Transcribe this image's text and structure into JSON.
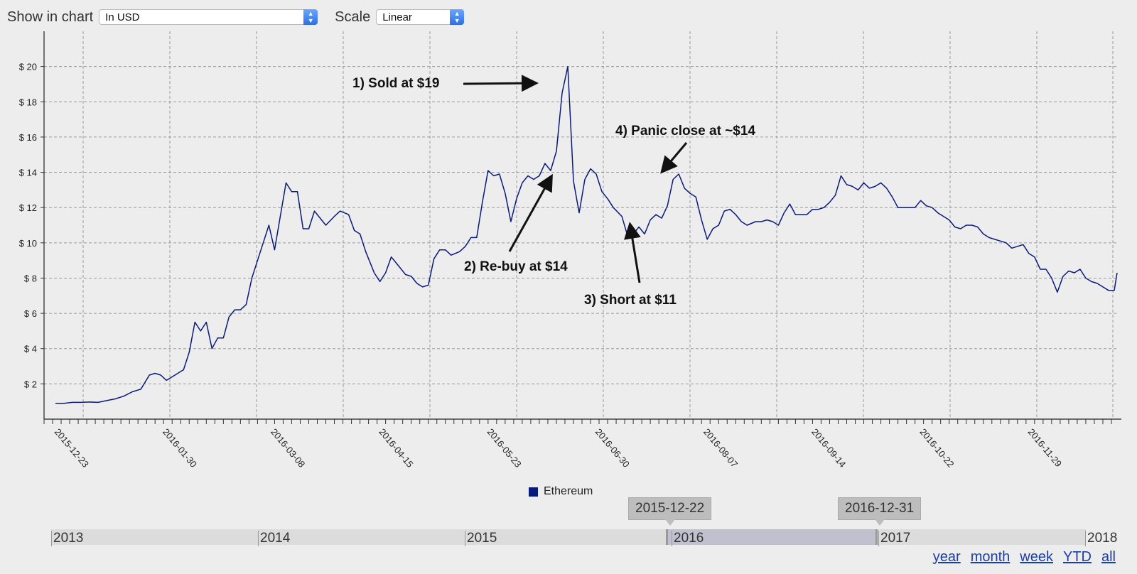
{
  "controls": {
    "show_label": "Show in chart",
    "show_value": "In USD",
    "scale_label": "Scale",
    "scale_value": "Linear"
  },
  "chart_data": {
    "type": "line",
    "title": "",
    "xlabel": "",
    "ylabel": "",
    "ylim": [
      0,
      22
    ],
    "grid": true,
    "legend_position": "bottom-center",
    "y_ticks": [
      2,
      4,
      6,
      8,
      10,
      12,
      14,
      16,
      18,
      20
    ],
    "y_tick_labels": [
      "$ 2",
      "$ 4",
      "$ 6",
      "$ 8",
      "$ 10",
      "$ 12",
      "$ 14",
      "$ 16",
      "$ 18",
      "$ 20"
    ],
    "x_tick_labels": [
      "2015-12-23",
      "2016-01-30",
      "2016-03-08",
      "2016-04-15",
      "2016-05-23",
      "2016-06-30",
      "2016-08-07",
      "2016-09-14",
      "2016-10-22",
      "2016-11-29"
    ],
    "x_range": [
      "2015-12-20",
      "2016-12-31"
    ],
    "series": [
      {
        "name": "Ethereum",
        "color": "#0a1a7a",
        "points": [
          [
            "2015-12-24",
            0.9
          ],
          [
            "2015-12-27",
            0.9
          ],
          [
            "2015-12-30",
            0.95
          ],
          [
            "2016-01-02",
            0.95
          ],
          [
            "2016-01-05",
            0.97
          ],
          [
            "2016-01-08",
            0.95
          ],
          [
            "2016-01-11",
            1.05
          ],
          [
            "2016-01-14",
            1.15
          ],
          [
            "2016-01-17",
            1.3
          ],
          [
            "2016-01-20",
            1.55
          ],
          [
            "2016-01-23",
            1.7
          ],
          [
            "2016-01-26",
            2.5
          ],
          [
            "2016-01-28",
            2.6
          ],
          [
            "2016-01-30",
            2.5
          ],
          [
            "2016-02-01",
            2.2
          ],
          [
            "2016-02-04",
            2.5
          ],
          [
            "2016-02-07",
            2.8
          ],
          [
            "2016-02-09",
            3.8
          ],
          [
            "2016-02-11",
            5.5
          ],
          [
            "2016-02-13",
            5.0
          ],
          [
            "2016-02-15",
            5.5
          ],
          [
            "2016-02-17",
            4.0
          ],
          [
            "2016-02-19",
            4.6
          ],
          [
            "2016-02-21",
            4.6
          ],
          [
            "2016-02-23",
            5.8
          ],
          [
            "2016-02-25",
            6.2
          ],
          [
            "2016-02-27",
            6.2
          ],
          [
            "2016-02-29",
            6.5
          ],
          [
            "2016-03-02",
            8.0
          ],
          [
            "2016-03-05",
            9.5
          ],
          [
            "2016-03-08",
            11.0
          ],
          [
            "2016-03-10",
            9.6
          ],
          [
            "2016-03-12",
            11.5
          ],
          [
            "2016-03-14",
            13.4
          ],
          [
            "2016-03-16",
            12.9
          ],
          [
            "2016-03-18",
            12.9
          ],
          [
            "2016-03-20",
            10.8
          ],
          [
            "2016-03-22",
            10.8
          ],
          [
            "2016-03-24",
            11.8
          ],
          [
            "2016-03-26",
            11.4
          ],
          [
            "2016-03-28",
            11.0
          ],
          [
            "2016-03-31",
            11.5
          ],
          [
            "2016-04-02",
            11.8
          ],
          [
            "2016-04-05",
            11.6
          ],
          [
            "2016-04-07",
            10.7
          ],
          [
            "2016-04-09",
            10.5
          ],
          [
            "2016-04-11",
            9.5
          ],
          [
            "2016-04-14",
            8.3
          ],
          [
            "2016-04-16",
            7.8
          ],
          [
            "2016-04-18",
            8.3
          ],
          [
            "2016-04-20",
            9.2
          ],
          [
            "2016-04-22",
            8.8
          ],
          [
            "2016-04-25",
            8.2
          ],
          [
            "2016-04-27",
            8.1
          ],
          [
            "2016-04-29",
            7.7
          ],
          [
            "2016-05-01",
            7.5
          ],
          [
            "2016-05-03",
            7.6
          ],
          [
            "2016-05-05",
            9.1
          ],
          [
            "2016-05-07",
            9.6
          ],
          [
            "2016-05-09",
            9.6
          ],
          [
            "2016-05-11",
            9.3
          ],
          [
            "2016-05-14",
            9.5
          ],
          [
            "2016-05-16",
            9.8
          ],
          [
            "2016-05-18",
            10.3
          ],
          [
            "2016-05-20",
            10.3
          ],
          [
            "2016-05-22",
            12.3
          ],
          [
            "2016-05-24",
            14.1
          ],
          [
            "2016-05-26",
            13.8
          ],
          [
            "2016-05-28",
            13.9
          ],
          [
            "2016-05-30",
            12.8
          ],
          [
            "2016-06-01",
            11.2
          ],
          [
            "2016-06-03",
            12.5
          ],
          [
            "2016-06-05",
            13.4
          ],
          [
            "2016-06-07",
            13.8
          ],
          [
            "2016-06-09",
            13.6
          ],
          [
            "2016-06-11",
            13.8
          ],
          [
            "2016-06-13",
            14.5
          ],
          [
            "2016-06-15",
            14.1
          ],
          [
            "2016-06-17",
            15.2
          ],
          [
            "2016-06-19",
            18.5
          ],
          [
            "2016-06-21",
            20.0
          ],
          [
            "2016-06-23",
            13.5
          ],
          [
            "2016-06-25",
            11.7
          ],
          [
            "2016-06-27",
            13.6
          ],
          [
            "2016-06-29",
            14.2
          ],
          [
            "2016-07-01",
            13.9
          ],
          [
            "2016-07-03",
            12.9
          ],
          [
            "2016-07-05",
            12.5
          ],
          [
            "2016-07-07",
            12.0
          ],
          [
            "2016-07-10",
            11.5
          ],
          [
            "2016-07-12",
            10.4
          ],
          [
            "2016-07-14",
            10.5
          ],
          [
            "2016-07-16",
            10.9
          ],
          [
            "2016-07-18",
            10.5
          ],
          [
            "2016-07-20",
            11.3
          ],
          [
            "2016-07-22",
            11.6
          ],
          [
            "2016-07-24",
            11.4
          ],
          [
            "2016-07-26",
            12.1
          ],
          [
            "2016-07-28",
            13.6
          ],
          [
            "2016-07-30",
            13.9
          ],
          [
            "2016-08-01",
            13.1
          ],
          [
            "2016-08-03",
            12.8
          ],
          [
            "2016-08-05",
            12.6
          ],
          [
            "2016-08-07",
            11.3
          ],
          [
            "2016-08-09",
            10.2
          ],
          [
            "2016-08-11",
            10.8
          ],
          [
            "2016-08-13",
            11.0
          ],
          [
            "2016-08-15",
            11.8
          ],
          [
            "2016-08-17",
            11.9
          ],
          [
            "2016-08-19",
            11.6
          ],
          [
            "2016-08-21",
            11.2
          ],
          [
            "2016-08-23",
            11.0
          ],
          [
            "2016-08-26",
            11.2
          ],
          [
            "2016-08-28",
            11.2
          ],
          [
            "2016-08-30",
            11.3
          ],
          [
            "2016-09-01",
            11.2
          ],
          [
            "2016-09-03",
            11.0
          ],
          [
            "2016-09-05",
            11.7
          ],
          [
            "2016-09-07",
            12.2
          ],
          [
            "2016-09-09",
            11.6
          ],
          [
            "2016-09-11",
            11.6
          ],
          [
            "2016-09-13",
            11.6
          ],
          [
            "2016-09-15",
            11.9
          ],
          [
            "2016-09-17",
            11.9
          ],
          [
            "2016-09-19",
            12.0
          ],
          [
            "2016-09-21",
            12.3
          ],
          [
            "2016-09-23",
            12.7
          ],
          [
            "2016-09-25",
            13.8
          ],
          [
            "2016-09-27",
            13.3
          ],
          [
            "2016-09-29",
            13.2
          ],
          [
            "2016-10-01",
            13.0
          ],
          [
            "2016-10-03",
            13.4
          ],
          [
            "2016-10-05",
            13.1
          ],
          [
            "2016-10-07",
            13.2
          ],
          [
            "2016-10-09",
            13.4
          ],
          [
            "2016-10-11",
            13.1
          ],
          [
            "2016-10-13",
            12.6
          ],
          [
            "2016-10-15",
            12.0
          ],
          [
            "2016-10-17",
            12.0
          ],
          [
            "2016-10-19",
            12.0
          ],
          [
            "2016-10-21",
            12.0
          ],
          [
            "2016-10-23",
            12.4
          ],
          [
            "2016-10-25",
            12.1
          ],
          [
            "2016-10-27",
            12.0
          ],
          [
            "2016-10-29",
            11.7
          ],
          [
            "2016-10-31",
            11.5
          ],
          [
            "2016-11-02",
            11.3
          ],
          [
            "2016-11-04",
            10.9
          ],
          [
            "2016-11-06",
            10.8
          ],
          [
            "2016-11-08",
            11.0
          ],
          [
            "2016-11-10",
            11.0
          ],
          [
            "2016-11-12",
            10.9
          ],
          [
            "2016-11-14",
            10.5
          ],
          [
            "2016-11-16",
            10.3
          ],
          [
            "2016-11-18",
            10.2
          ],
          [
            "2016-11-20",
            10.1
          ],
          [
            "2016-11-22",
            10.0
          ],
          [
            "2016-11-24",
            9.7
          ],
          [
            "2016-11-26",
            9.8
          ],
          [
            "2016-11-28",
            9.9
          ],
          [
            "2016-11-30",
            9.4
          ],
          [
            "2016-12-02",
            9.2
          ],
          [
            "2016-12-04",
            8.5
          ],
          [
            "2016-12-06",
            8.5
          ],
          [
            "2016-12-08",
            8.0
          ],
          [
            "2016-12-10",
            7.2
          ],
          [
            "2016-12-12",
            8.1
          ],
          [
            "2016-12-14",
            8.4
          ],
          [
            "2016-12-16",
            8.3
          ],
          [
            "2016-12-18",
            8.5
          ],
          [
            "2016-12-20",
            8.0
          ],
          [
            "2016-12-22",
            7.8
          ],
          [
            "2016-12-24",
            7.7
          ],
          [
            "2016-12-26",
            7.5
          ],
          [
            "2016-12-28",
            7.3
          ],
          [
            "2016-12-30",
            7.3
          ],
          [
            "2016-12-31",
            8.3
          ]
        ]
      }
    ],
    "annotations": [
      {
        "text": "1) Sold at  $19"
      },
      {
        "text": "2) Re-buy at $14"
      },
      {
        "text": "3) Short at $11"
      },
      {
        "text": "4) Panic close at ~$14"
      }
    ]
  },
  "navigator": {
    "years": [
      "2013",
      "2014",
      "2015",
      "2016",
      "2017",
      "2018"
    ],
    "start_label": "2015-12-22",
    "end_label": "2016-12-31"
  },
  "range_buttons": [
    "year",
    "month",
    "week",
    "YTD",
    "all"
  ]
}
